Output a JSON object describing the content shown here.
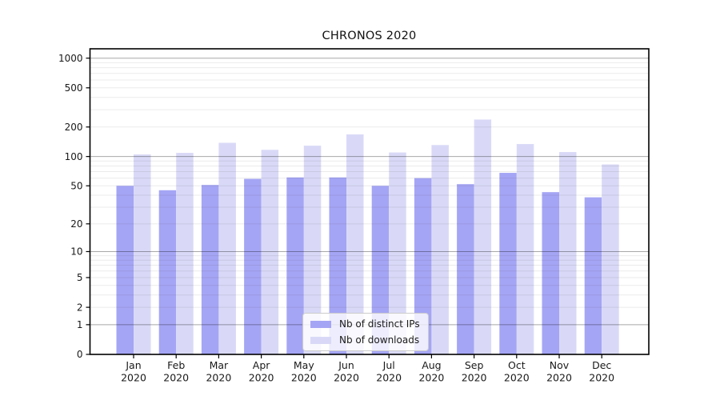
{
  "title": "CHRONOS 2020",
  "colors": {
    "ips": "#a5a5f5",
    "downloads": "#d9d9f7",
    "axis": "#000000",
    "text": "#1a1a1a",
    "major_grid": "rgba(0,0,0,0.34)",
    "minor_grid": "rgba(0,0,0,0.08)"
  },
  "chart_data": {
    "type": "bar",
    "title": "CHRONOS 2020",
    "categories": [
      "Jan",
      "Feb",
      "Mar",
      "Apr",
      "May",
      "Jun",
      "Jul",
      "Aug",
      "Sep",
      "Oct",
      "Nov",
      "Dec"
    ],
    "year": "2020",
    "series": [
      {
        "name": "Nb of distinct IPs",
        "values": [
          50,
          45,
          51,
          59,
          61,
          61,
          50,
          60,
          52,
          68,
          43,
          38
        ]
      },
      {
        "name": "Nb of downloads",
        "values": [
          105,
          109,
          138,
          117,
          129,
          168,
          110,
          131,
          238,
          134,
          111,
          83
        ]
      }
    ],
    "xlabel": "",
    "ylabel": "",
    "y_scale": "symlog",
    "ylim": [
      0,
      1200
    ],
    "y_ticks": [
      1000,
      500,
      200,
      100,
      50,
      20,
      10,
      5,
      2,
      1,
      0
    ],
    "y_major_gridlines": [
      1,
      10,
      100,
      1000
    ],
    "y_minor_gridlines": [
      2,
      3,
      4,
      5,
      6,
      7,
      8,
      9,
      20,
      30,
      40,
      50,
      60,
      70,
      80,
      90,
      200,
      300,
      400,
      500,
      600,
      700,
      800,
      900
    ],
    "grid": true,
    "legend_position": "lower center"
  }
}
